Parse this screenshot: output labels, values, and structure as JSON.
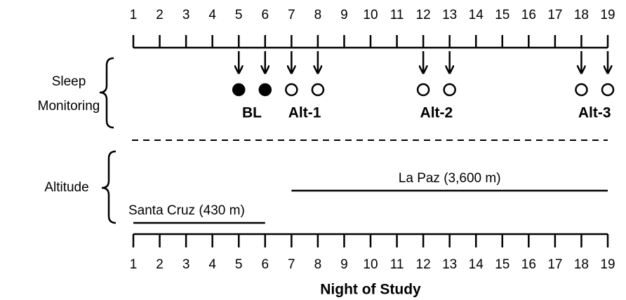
{
  "nights": [
    1,
    2,
    3,
    4,
    5,
    6,
    7,
    8,
    9,
    10,
    11,
    12,
    13,
    14,
    15,
    16,
    17,
    18,
    19
  ],
  "groups": {
    "sleep": [
      "Sleep",
      "Monitoring"
    ],
    "altitude": "Altitude"
  },
  "sessions": [
    {
      "label": "BL",
      "nights": [
        5,
        6
      ],
      "filled": true
    },
    {
      "label": "Alt-1",
      "nights": [
        7,
        8
      ],
      "filled": false
    },
    {
      "label": "Alt-2",
      "nights": [
        12,
        13
      ],
      "filled": false
    },
    {
      "label": "Alt-3",
      "nights": [
        18,
        19
      ],
      "filled": false
    }
  ],
  "locations": [
    {
      "label": "Santa Cruz (430 m)",
      "from": 1,
      "to": 6
    },
    {
      "label": "La Paz (3,600 m)",
      "from": 7,
      "to": 19
    }
  ],
  "xlabel": "Night of Study"
}
